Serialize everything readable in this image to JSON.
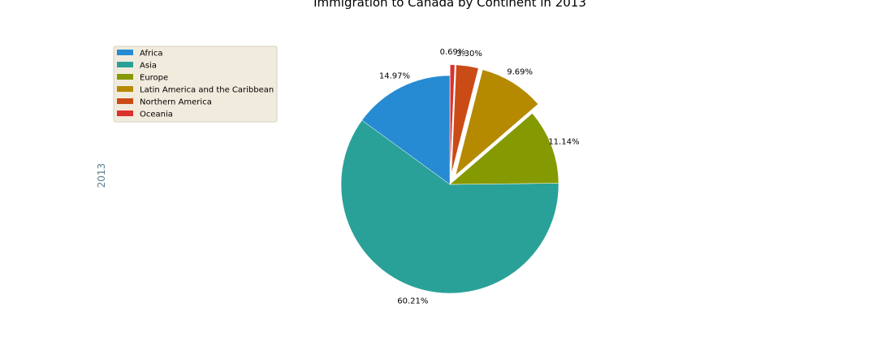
{
  "chart_data": {
    "type": "pie",
    "title": "Immigration to Canada by Continent in 2013",
    "ylabel": "2013",
    "ylabel_color": "#5a7d8c",
    "legend_position": "top-left",
    "legend_background": "#f1ebdd",
    "start_angle_deg": 90,
    "direction": "counterclockwise",
    "slices": [
      {
        "label": "Africa",
        "percent": 14.97,
        "percent_label": "14.97%",
        "color": "#268bd2",
        "explode": 0.0
      },
      {
        "label": "Asia",
        "percent": 60.21,
        "percent_label": "60.21%",
        "color": "#2aa198",
        "explode": 0.0
      },
      {
        "label": "Europe",
        "percent": 11.14,
        "percent_label": "11.14%",
        "color": "#859900",
        "explode": 0.0
      },
      {
        "label": "Latin America and the Caribbean",
        "percent": 9.69,
        "percent_label": "9.69%",
        "color": "#b58900",
        "explode": 0.1
      },
      {
        "label": "Northern America",
        "percent": 3.3,
        "percent_label": "3.30%",
        "color": "#cb4b16",
        "explode": 0.1
      },
      {
        "label": "Oceania",
        "percent": 0.69,
        "percent_label": "0.69%",
        "color": "#dc322f",
        "explode": 0.1
      }
    ]
  }
}
